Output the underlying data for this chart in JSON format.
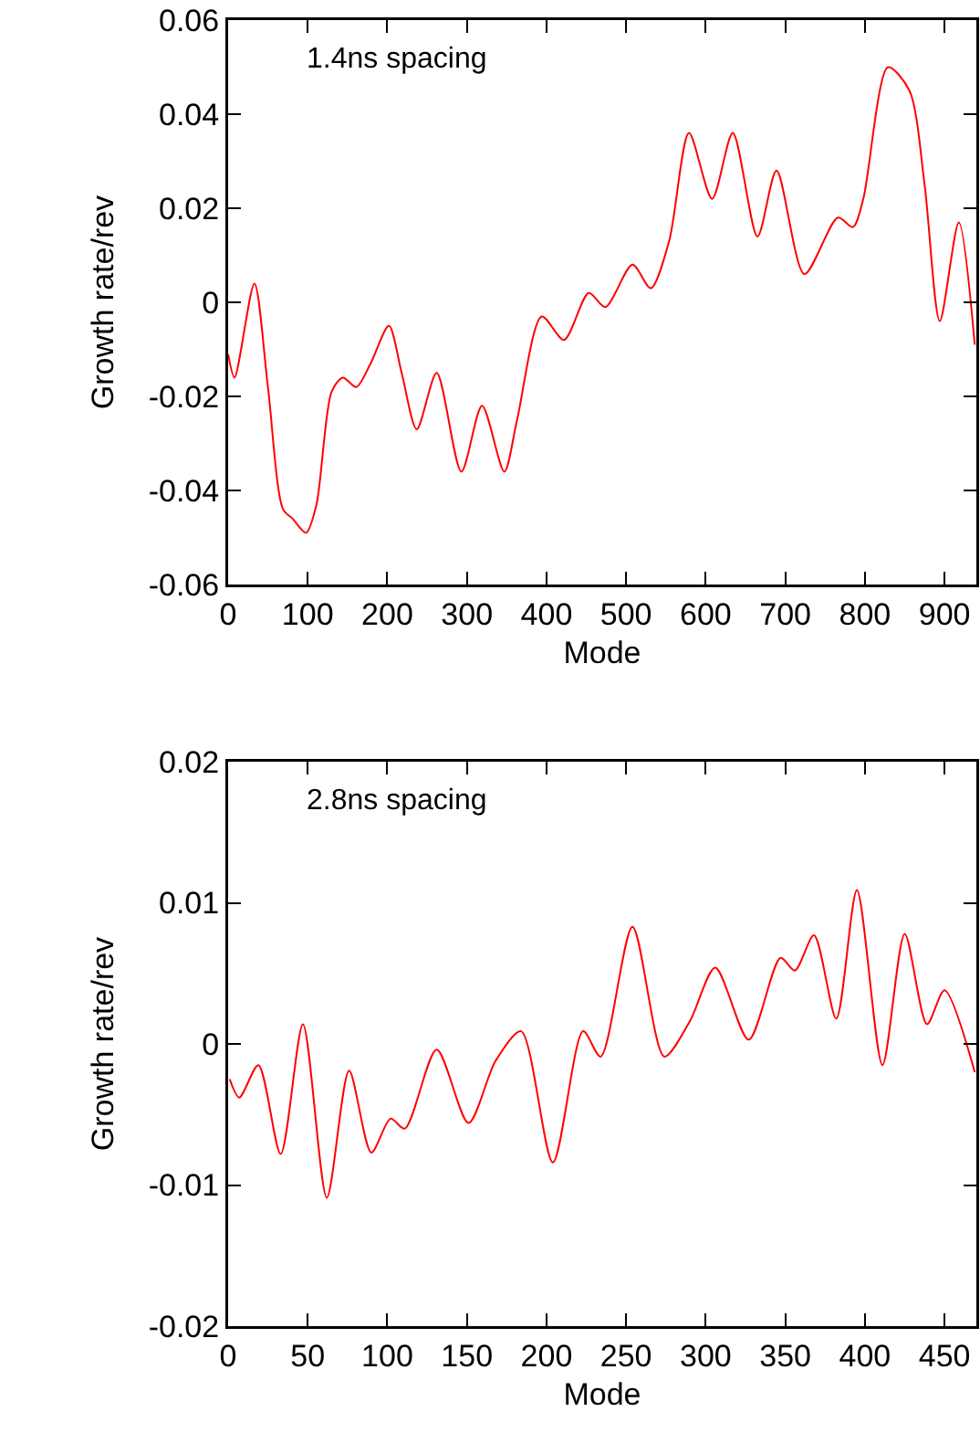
{
  "chart_data": [
    {
      "type": "line",
      "xlabel": "Mode",
      "ylabel": "Growth rate/rev",
      "annotations": [
        "1.4ns spacing"
      ],
      "grid": false,
      "marker": "none",
      "line_style": "solid",
      "xlim": [
        0,
        940
      ],
      "xticks": [
        0,
        100,
        200,
        300,
        400,
        500,
        600,
        700,
        800,
        900
      ],
      "ylim": [
        -0.06,
        0.06
      ],
      "yticks": [
        -0.06,
        -0.04,
        -0.02,
        0,
        0.02,
        0.04,
        0.06
      ],
      "series": [
        {
          "color": "#ff0000",
          "x": [
            0,
            8,
            33,
            50,
            69,
            81,
            98,
            111,
            130,
            144,
            161,
            179,
            202,
            218,
            237,
            262,
            293,
            319,
            347,
            363,
            394,
            422,
            453,
            474,
            508,
            531,
            554,
            579,
            608,
            634,
            665,
            689,
            724,
            766,
            785,
            798,
            829,
            856,
            875,
            894,
            918,
            938
          ],
          "values": [
            -0.011,
            -0.016,
            0.004,
            -0.018,
            -0.044,
            -0.046,
            -0.049,
            -0.043,
            -0.019,
            -0.016,
            -0.018,
            -0.013,
            -0.005,
            -0.015,
            -0.027,
            -0.015,
            -0.036,
            -0.022,
            -0.036,
            -0.025,
            -0.003,
            -0.008,
            0.002,
            -0.001,
            0.008,
            0.003,
            0.013,
            0.036,
            0.022,
            0.036,
            0.014,
            0.028,
            0.006,
            0.018,
            0.016,
            0.022,
            0.05,
            0.045,
            0.025,
            -0.004,
            0.017,
            -0.009
          ]
        }
      ]
    },
    {
      "type": "line",
      "xlabel": "Mode",
      "ylabel": "Growth rate/rev",
      "annotations": [
        "2.8ns spacing"
      ],
      "grid": false,
      "marker": "none",
      "line_style": "solid",
      "xlim": [
        0,
        470
      ],
      "xticks": [
        0,
        50,
        100,
        150,
        200,
        250,
        300,
        350,
        400,
        450
      ],
      "ylim": [
        -0.02,
        0.02
      ],
      "yticks": [
        -0.02,
        -0.01,
        0,
        0.01,
        0.02
      ],
      "series": [
        {
          "color": "#ff0000",
          "x": [
            1,
            7,
            19,
            33,
            47,
            62,
            76,
            90,
            102,
            111,
            131,
            151,
            168,
            184,
            204,
            223,
            234,
            254,
            274,
            290,
            306,
            327,
            347,
            356,
            368,
            382,
            395,
            411,
            425,
            439,
            450,
            469
          ],
          "values": [
            -0.0025,
            -0.0038,
            -0.0015,
            -0.0078,
            0.0014,
            -0.0109,
            -0.0019,
            -0.0077,
            -0.0053,
            -0.006,
            -0.0004,
            -0.0056,
            -0.0012,
            0.0009,
            -0.0084,
            0.0009,
            -0.0009,
            0.0083,
            -0.0009,
            0.0016,
            0.0054,
            0.0003,
            0.0061,
            0.0052,
            0.0077,
            0.0018,
            0.0109,
            -0.0015,
            0.0078,
            0.0014,
            0.0038,
            -0.002
          ]
        }
      ]
    }
  ]
}
